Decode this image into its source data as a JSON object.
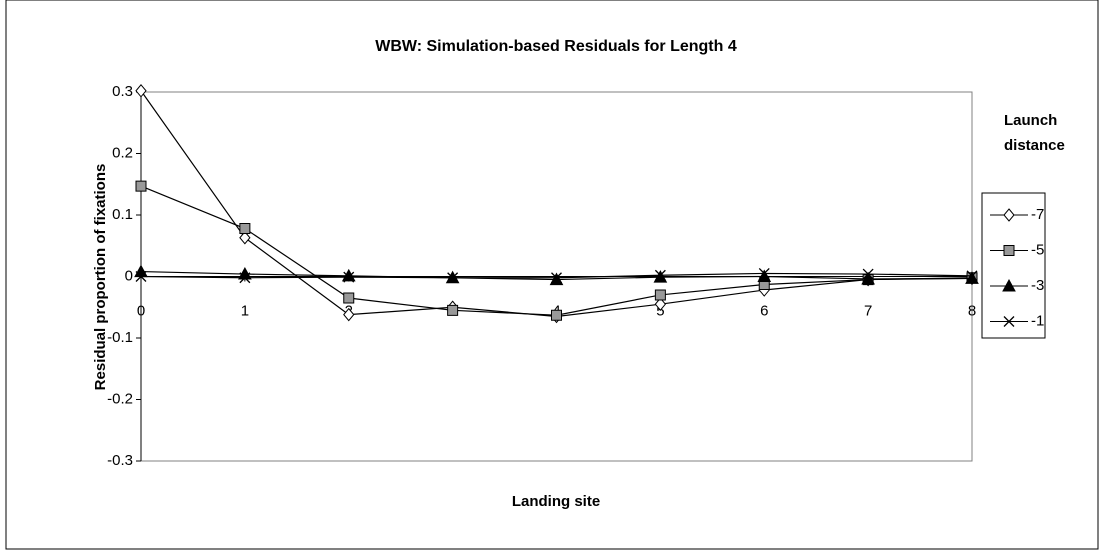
{
  "chart_data": {
    "type": "line",
    "title": "WBW: Simulation-based Residuals for Length 4",
    "x_label": "Landing site",
    "y_label": "Residual proportion of fixations",
    "legend_title": "Launch distance",
    "legend_position": "right",
    "x": [
      0,
      1,
      2,
      3,
      4,
      5,
      6,
      7,
      8
    ],
    "xlim": [
      0,
      8
    ],
    "xticks": [
      0,
      1,
      2,
      3,
      4,
      5,
      6,
      7,
      8
    ],
    "ylim": [
      -0.3,
      0.3
    ],
    "yticks": [
      0.3,
      0.2,
      0.1,
      0,
      -0.1,
      -0.2,
      -0.3
    ],
    "grid": false,
    "series": [
      {
        "name": "-7",
        "color": "#000000",
        "marker": "diamond",
        "values": [
          0.302,
          0.063,
          -0.062,
          -0.05,
          -0.065,
          -0.045,
          -0.022,
          -0.005,
          -0.003
        ]
      },
      {
        "name": "-5",
        "color": "#000000",
        "marker": "square",
        "values": [
          0.147,
          0.078,
          -0.035,
          -0.055,
          -0.063,
          -0.03,
          -0.013,
          -0.005,
          -0.002
        ]
      },
      {
        "name": "-3",
        "color": "#000000",
        "marker": "triangle",
        "values": [
          0.008,
          0.004,
          0.001,
          -0.002,
          -0.005,
          -0.001,
          0.0,
          -0.004,
          -0.003
        ]
      },
      {
        "name": "-1",
        "color": "#000000",
        "marker": "x",
        "values": [
          0.0,
          -0.002,
          -0.001,
          -0.002,
          -0.002,
          0.002,
          0.005,
          0.004,
          0.001
        ]
      }
    ]
  }
}
